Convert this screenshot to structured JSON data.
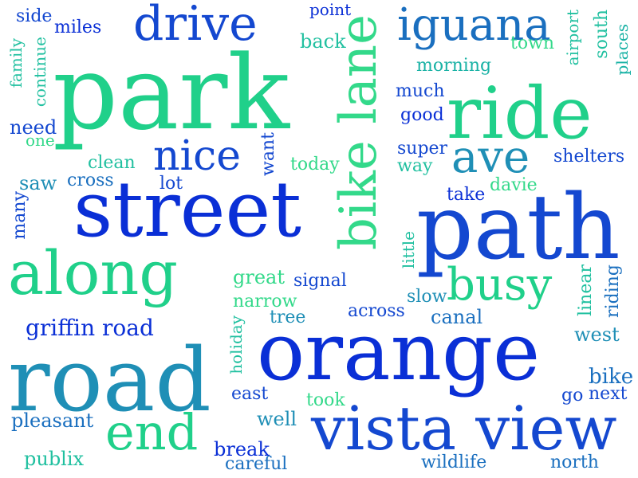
{
  "words": {
    "park": "park",
    "ride": "ride",
    "street": "street",
    "path": "path",
    "orange": "orange",
    "road": "road",
    "along": "along",
    "vista_view": "vista view",
    "bike_lane": "bike lane",
    "drive": "drive",
    "iguana": "iguana",
    "nice": "nice",
    "ave": "ave",
    "busy": "busy",
    "end": "end",
    "griffin_road": "griffin road",
    "side": "side",
    "miles": "miles",
    "family": "family",
    "continue": "continue",
    "need": "need",
    "one": "one",
    "point": "point",
    "back": "back",
    "town": "town",
    "airport": "airport",
    "south": "south",
    "places": "places",
    "morning": "morning",
    "much": "much",
    "good": "good",
    "super": "super",
    "way": "way",
    "shelters": "shelters",
    "clean": "clean",
    "want": "want",
    "today": "today",
    "saw": "saw",
    "cross": "cross",
    "lot": "lot",
    "take": "take",
    "davie": "davie",
    "many": "many",
    "little": "little",
    "great": "great",
    "signal": "signal",
    "narrow": "narrow",
    "tree": "tree",
    "across": "across",
    "slow": "slow",
    "canal": "canal",
    "linear": "linear",
    "riding": "riding",
    "west": "west",
    "holiday": "holiday",
    "bike": "bike",
    "east": "east",
    "took": "took",
    "go": "go",
    "next": "next",
    "pleasant": "pleasant",
    "well": "well",
    "break": "break",
    "careful": "careful",
    "publix": "publix",
    "wildlife": "wildlife",
    "north": "north"
  }
}
